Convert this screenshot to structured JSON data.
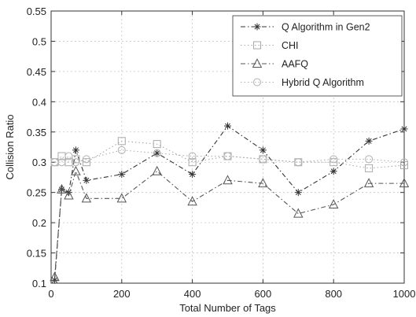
{
  "chart_data": {
    "type": "line",
    "title": "",
    "xlabel": "Total Number of Tags",
    "ylabel": "Collision Ratio",
    "xlim": [
      0,
      1000
    ],
    "ylim": [
      0.1,
      0.55
    ],
    "x_ticks": [
      0,
      200,
      400,
      600,
      800,
      1000
    ],
    "y_ticks": [
      0.1,
      0.15,
      0.2,
      0.25,
      0.3,
      0.35,
      0.4,
      0.45,
      0.5,
      0.55
    ],
    "x_tick_labels": [
      "0",
      "200",
      "400",
      "600",
      "800",
      "1000"
    ],
    "y_tick_labels": [
      "0.1",
      "0.15",
      "0.2",
      "0.25",
      "0.3",
      "0.35",
      "0.4",
      "0.45",
      "0.5",
      "0.55"
    ],
    "grid": true,
    "legend_position": "top-right",
    "series": [
      {
        "name": "Q Algorithm in Gen2",
        "marker": "star",
        "line": "dash-dot",
        "color": "#333333",
        "x": [
          10,
          30,
          50,
          70,
          100,
          200,
          300,
          400,
          500,
          600,
          700,
          800,
          900,
          1000
        ],
        "y": [
          0.105,
          0.255,
          0.25,
          0.32,
          0.27,
          0.28,
          0.315,
          0.28,
          0.36,
          0.32,
          0.25,
          0.285,
          0.335,
          0.355
        ]
      },
      {
        "name": "CHI",
        "marker": "square",
        "line": "dotted",
        "color": "#aaaaaa",
        "x": [
          10,
          30,
          50,
          70,
          100,
          200,
          300,
          400,
          500,
          600,
          700,
          800,
          900,
          1000
        ],
        "y": [
          0.3,
          0.31,
          0.3,
          0.305,
          0.3,
          0.335,
          0.33,
          0.3,
          0.31,
          0.305,
          0.3,
          0.3,
          0.29,
          0.295
        ]
      },
      {
        "name": "AAFQ",
        "marker": "triangle",
        "line": "dash-dot",
        "color": "#555555",
        "x": [
          10,
          30,
          50,
          70,
          100,
          200,
          300,
          400,
          500,
          600,
          700,
          800,
          900,
          1000
        ],
        "y": [
          0.11,
          0.255,
          0.245,
          0.285,
          0.24,
          0.24,
          0.285,
          0.235,
          0.27,
          0.265,
          0.215,
          0.23,
          0.265,
          0.265
        ]
      },
      {
        "name": "Hybrid Q Algorithm",
        "marker": "circle",
        "line": "dotted",
        "color": "#b0b0b0",
        "x": [
          10,
          30,
          50,
          70,
          100,
          200,
          300,
          400,
          500,
          600,
          700,
          800,
          900,
          1000
        ],
        "y": [
          0.3,
          0.3,
          0.31,
          0.3,
          0.305,
          0.32,
          0.315,
          0.31,
          0.31,
          0.305,
          0.3,
          0.305,
          0.305,
          0.3
        ]
      }
    ]
  }
}
